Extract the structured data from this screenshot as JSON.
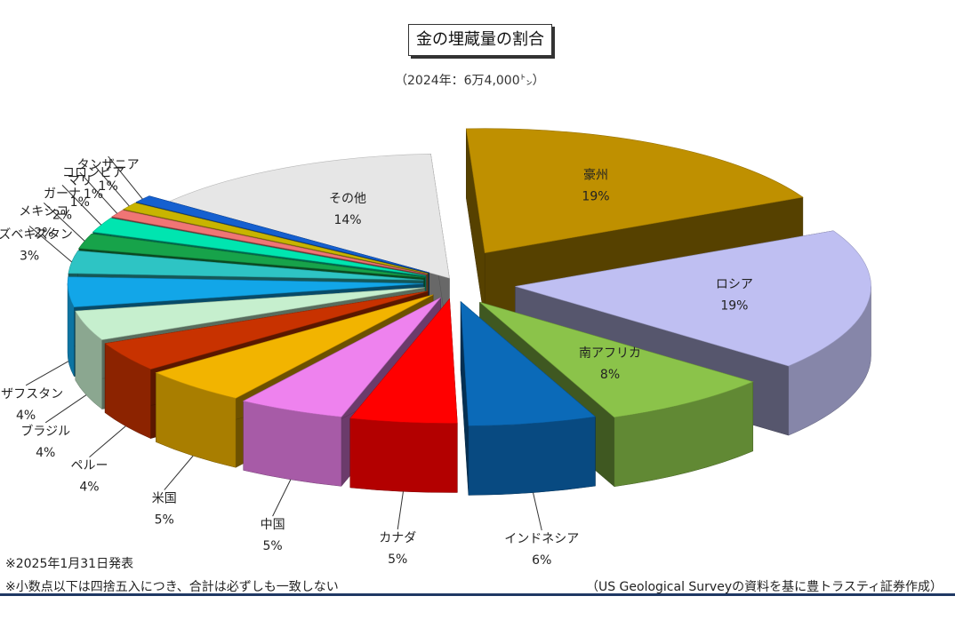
{
  "title": "金の埋蔵量の割合",
  "subtitle": "（2024年：6万4,000㌧）",
  "notes": [
    "※2025年1月31日発表",
    "※小数点以下は四捨五入につき、合計は必ずしも一致しない"
  ],
  "source": "（US Geological Surveyの資料を基に豊トラスティ証券作成）",
  "chart_data": {
    "type": "pie",
    "title": "金の埋蔵量の割合",
    "subtitle": "（2024年：6万4,000㌧）",
    "exploded": true,
    "three_d": true,
    "slices": [
      {
        "name": "豪州",
        "value": 19,
        "label": "19%",
        "color": "#bf9000"
      },
      {
        "name": "ロシア",
        "value": 19,
        "label": "19%",
        "color": "#bfbff2"
      },
      {
        "name": "南アフリカ",
        "value": 8,
        "label": "8%",
        "color": "#8bc34a"
      },
      {
        "name": "インドネシア",
        "value": 6,
        "label": "6%",
        "color": "#0b6ab8"
      },
      {
        "name": "カナダ",
        "value": 5,
        "label": "5%",
        "color": "#ff0000"
      },
      {
        "name": "中国",
        "value": 5,
        "label": "5%",
        "color": "#ee82ee"
      },
      {
        "name": "米国",
        "value": 5,
        "label": "5%",
        "color": "#f2b400"
      },
      {
        "name": "ペルー",
        "value": 4,
        "label": "4%",
        "color": "#c83200"
      },
      {
        "name": "ブラジル",
        "value": 4,
        "label": "4%",
        "color": "#c6efce"
      },
      {
        "name": "カザフスタン",
        "value": 4,
        "label": "4%",
        "color": "#12a6e8"
      },
      {
        "name": "ウズベキスタン",
        "value": 3,
        "label": "3%",
        "color": "#2ec4c4"
      },
      {
        "name": "メキシコ",
        "value": 2,
        "label": "2%",
        "color": "#17a34a"
      },
      {
        "name": "ガーナ",
        "value": 2,
        "label": "2%",
        "color": "#00e5b0"
      },
      {
        "name": "マリ",
        "value": 1,
        "label": "1%",
        "color": "#f07575"
      },
      {
        "name": "コロンビア",
        "value": 1,
        "label": "1%",
        "color": "#c8b400"
      },
      {
        "name": "タンザニア",
        "value": 1,
        "label": "1%",
        "color": "#1560d0"
      },
      {
        "name": "その他",
        "value": 14,
        "label": "14%",
        "color": "#e6e6e6"
      }
    ]
  }
}
